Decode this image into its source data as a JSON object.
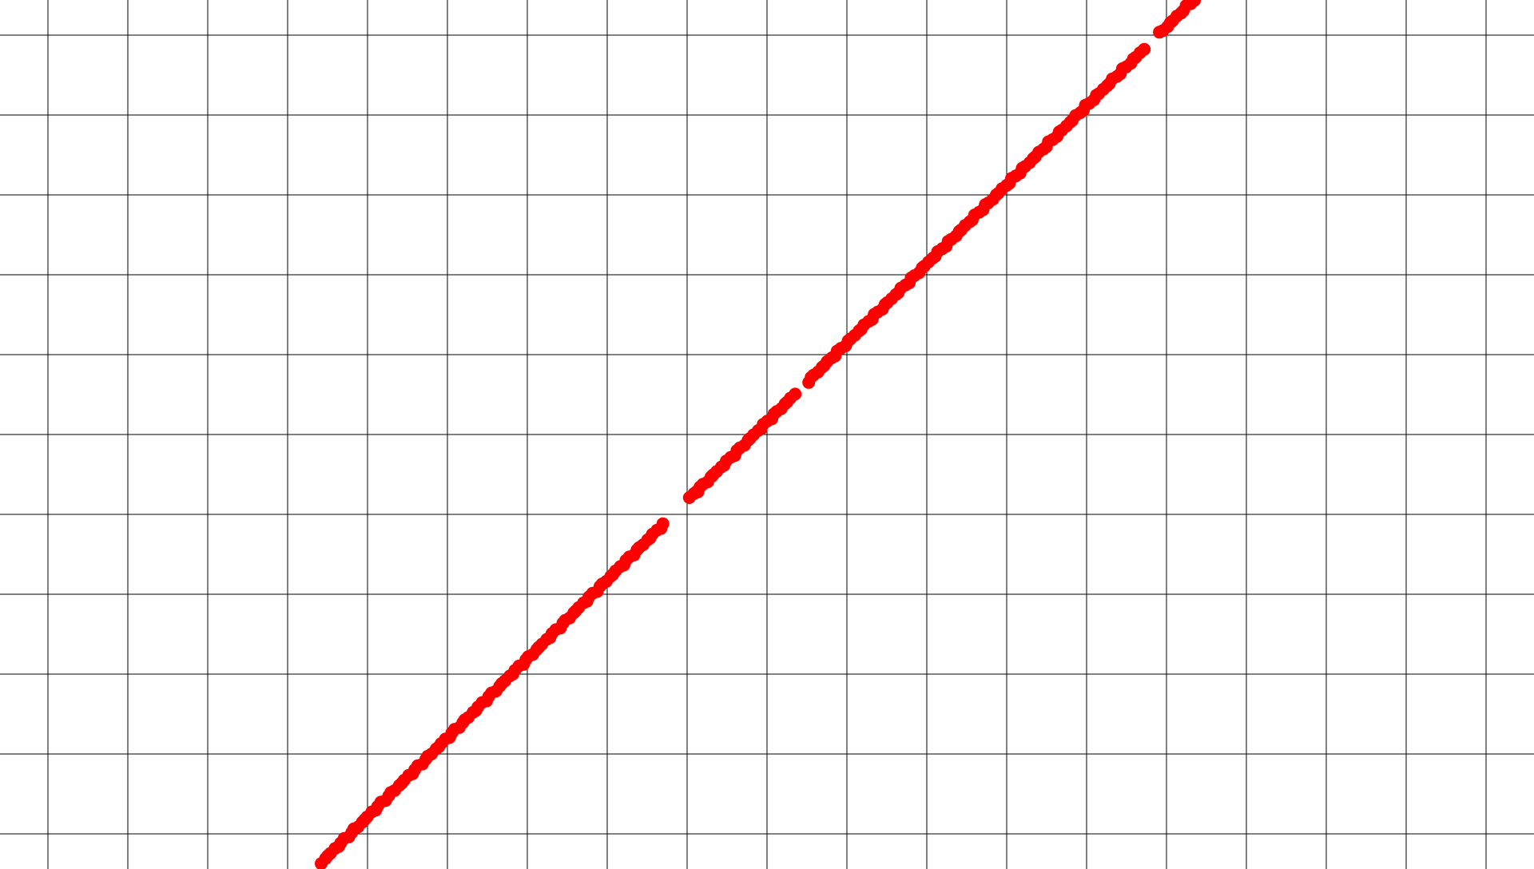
{
  "canvas": {
    "background": "#ffffff",
    "grid_color": "#000000",
    "trace_color": "#ff0000",
    "grid_visible": true
  },
  "stroke": {
    "shape": "straight diagonal line of dots, rising left to right",
    "segments_visible": 4
  }
}
